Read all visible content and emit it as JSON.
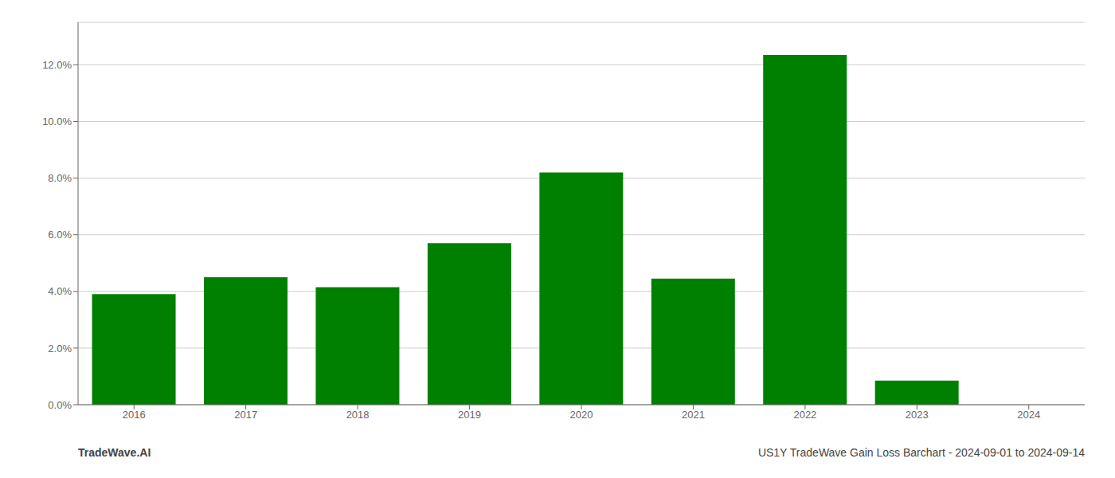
{
  "chart_data": {
    "type": "bar",
    "categories": [
      "2016",
      "2017",
      "2018",
      "2019",
      "2020",
      "2021",
      "2022",
      "2023",
      "2024"
    ],
    "values": [
      0.039,
      0.045,
      0.0415,
      0.057,
      0.082,
      0.0445,
      0.1235,
      0.0085,
      0.0
    ],
    "color": "#008000",
    "ylim": [
      0,
      0.135
    ],
    "yticks": [
      {
        "value": 0.0,
        "label": "0.0%"
      },
      {
        "value": 0.02,
        "label": "2.0%"
      },
      {
        "value": 0.04,
        "label": "4.0%"
      },
      {
        "value": 0.06,
        "label": "6.0%"
      },
      {
        "value": 0.08,
        "label": "8.0%"
      },
      {
        "value": 0.1,
        "label": "10.0%"
      },
      {
        "value": 0.12,
        "label": "12.0%"
      }
    ],
    "grid": true,
    "annotations": [
      "TradeWave.AI",
      "US1Y TradeWave Gain Loss Barchart - 2024-09-01 to 2024-09-14"
    ]
  }
}
